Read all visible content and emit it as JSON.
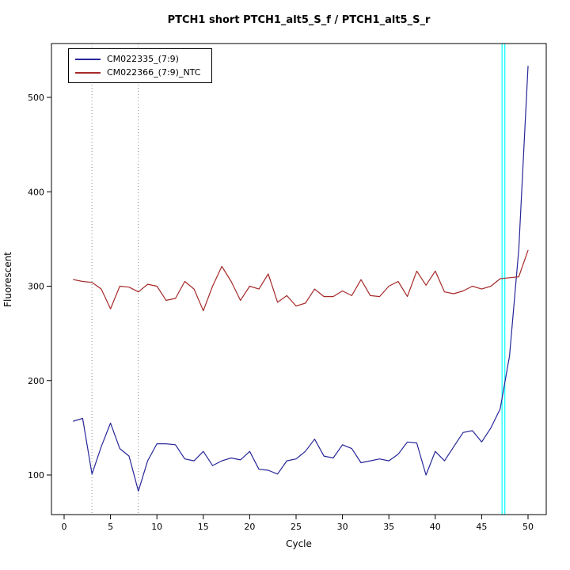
{
  "chart_data": {
    "type": "line",
    "title": "PTCH1 short PTCH1_alt5_S_f / PTCH1_alt5_S_r",
    "xlabel": "Cycle",
    "ylabel": "Fluorescent",
    "x_ticks": [
      0,
      5,
      10,
      15,
      20,
      25,
      30,
      35,
      40,
      45,
      50
    ],
    "y_ticks": [
      100,
      200,
      300,
      400,
      500
    ],
    "xlim": [
      0,
      51
    ],
    "ylim": [
      58,
      557
    ],
    "grid": false,
    "legend_position": "topleft",
    "dotted_vlines": [
      3,
      8
    ],
    "threshold_vlines": {
      "color": "#00FFFF",
      "x": [
        47.2,
        47.5
      ]
    },
    "cycles": [
      1,
      2,
      3,
      4,
      5,
      6,
      7,
      8,
      9,
      10,
      11,
      12,
      13,
      14,
      15,
      16,
      17,
      18,
      19,
      20,
      21,
      22,
      23,
      24,
      25,
      26,
      27,
      28,
      29,
      30,
      31,
      32,
      33,
      34,
      35,
      36,
      37,
      38,
      39,
      40,
      41,
      42,
      43,
      44,
      45,
      46,
      47,
      48,
      49,
      50
    ],
    "series": [
      {
        "name": "CM022335_(7:9)",
        "color": "#262699",
        "values": [
          157,
          160,
          101,
          130,
          155,
          128,
          120,
          83,
          115,
          133,
          133,
          132,
          117,
          115,
          125,
          110,
          115,
          118,
          116,
          125,
          106,
          105,
          101,
          115,
          117,
          125,
          138,
          120,
          118,
          132,
          128,
          113,
          115,
          117,
          115,
          122,
          135,
          134,
          100,
          125,
          115,
          130,
          145,
          147,
          135,
          150,
          170,
          226,
          339,
          533
        ]
      },
      {
        "name": "CM022366_(7:9)_NTC",
        "color": "#A52A2A",
        "values": [
          307,
          305,
          304,
          297,
          276,
          300,
          299,
          294,
          302,
          300,
          285,
          287,
          305,
          297,
          274,
          300,
          321,
          305,
          285,
          300,
          297,
          313,
          283,
          290,
          279,
          282,
          297,
          289,
          289,
          295,
          290,
          307,
          290,
          289,
          300,
          305,
          289,
          316,
          301,
          316,
          294,
          292,
          295,
          300,
          297,
          300,
          308,
          309,
          310,
          338
        ]
      }
    ]
  }
}
